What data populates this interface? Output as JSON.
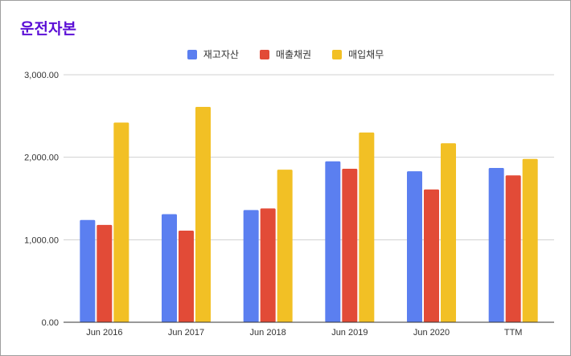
{
  "chart_data": {
    "type": "bar",
    "title": "운전자본",
    "categories": [
      "Jun 2016",
      "Jun 2017",
      "Jun 2018",
      "Jun 2019",
      "Jun 2020",
      "TTM"
    ],
    "series": [
      {
        "name": "재고자산",
        "color": "#5b7ff0",
        "values": [
          1240,
          1310,
          1360,
          1950,
          1830,
          1870
        ]
      },
      {
        "name": "매출채권",
        "color": "#e24b37",
        "values": [
          1180,
          1110,
          1380,
          1860,
          1610,
          1780
        ]
      },
      {
        "name": "매입채무",
        "color": "#f2c025",
        "values": [
          2420,
          2610,
          1850,
          2300,
          2170,
          1980
        ]
      }
    ],
    "yticks": [
      "0.00",
      "1,000.00",
      "2,000.00",
      "3,000.00"
    ],
    "ylim": [
      0,
      3000
    ],
    "xlabel": "",
    "ylabel": "",
    "grid": true,
    "legend": "top-center"
  }
}
